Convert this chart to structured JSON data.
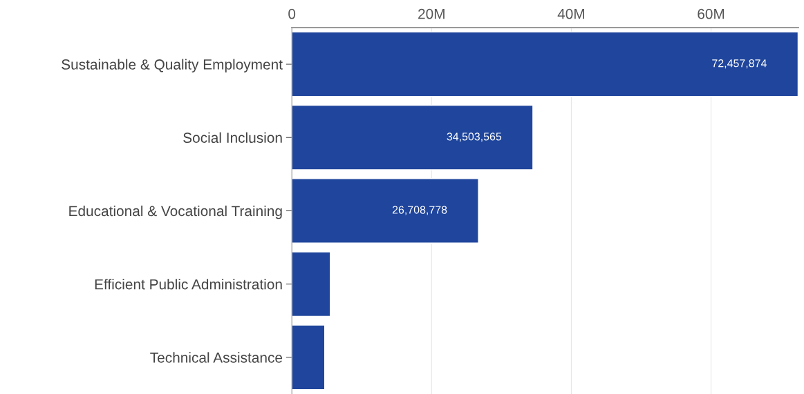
{
  "chart_data": {
    "type": "bar",
    "orientation": "horizontal",
    "categories": [
      "Sustainable & Quality Employment",
      "Social Inclusion",
      "Educational & Vocational Training",
      "Efficient Public Administration",
      "Technical Assistance"
    ],
    "values": [
      72457874,
      34503565,
      26708778,
      5500000,
      4700000
    ],
    "value_labels": [
      "72,457,874",
      "34,503,565",
      "26,708,778",
      null,
      null
    ],
    "color": "#1f459c",
    "xlim": [
      0,
      72500000
    ],
    "xticks": [
      {
        "value": 0,
        "label": "0"
      },
      {
        "value": 20000000,
        "label": "20M"
      },
      {
        "value": 40000000,
        "label": "40M"
      },
      {
        "value": 60000000,
        "label": "60M"
      }
    ],
    "grid": "x"
  }
}
